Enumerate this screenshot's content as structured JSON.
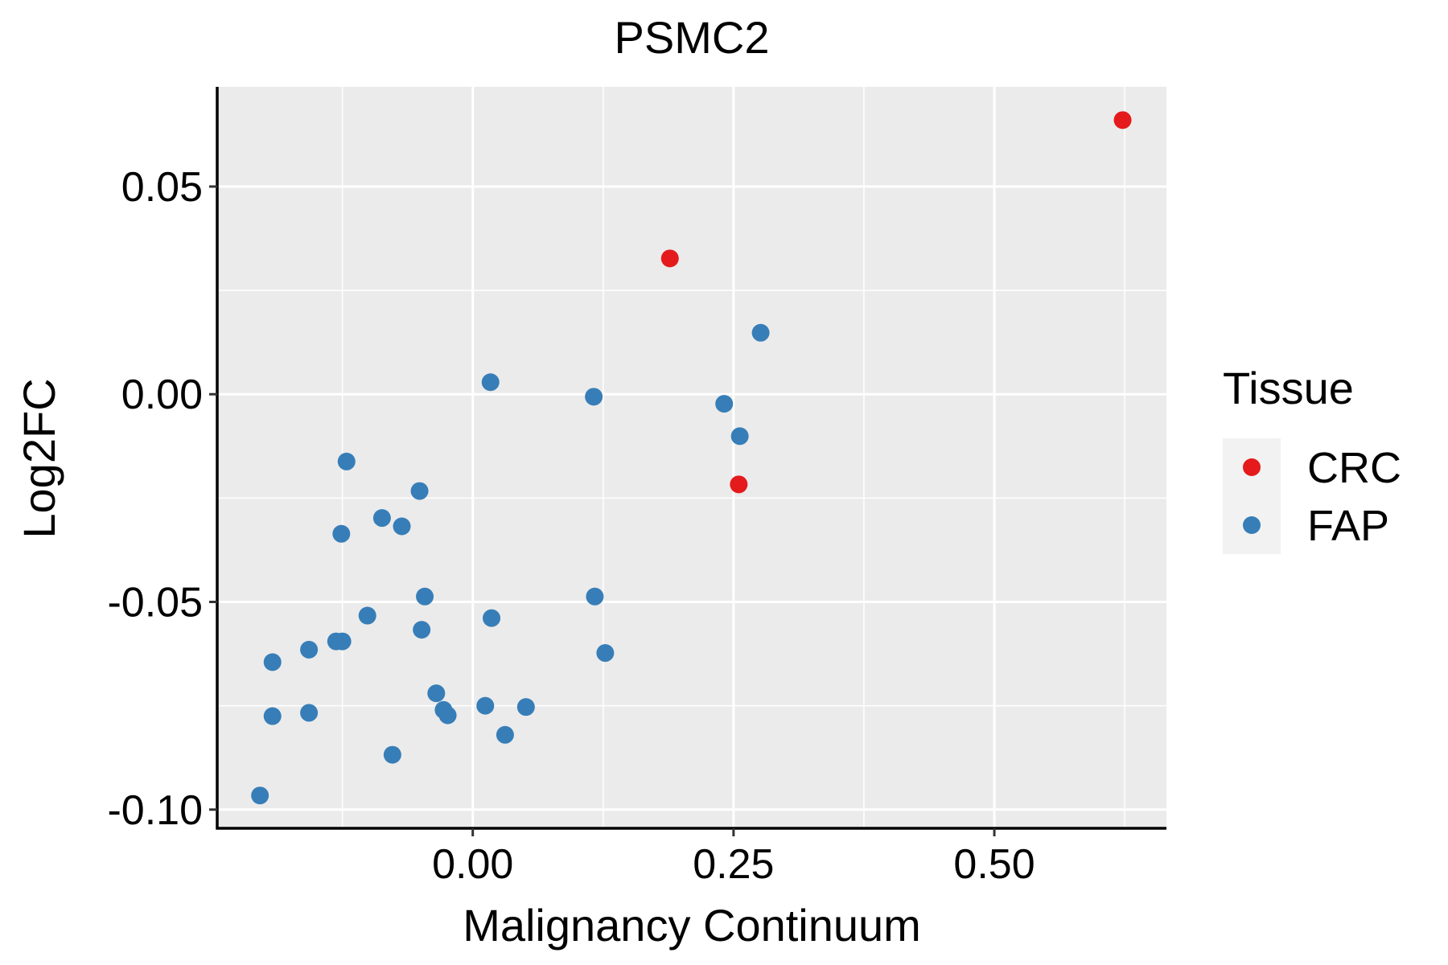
{
  "chart_data": {
    "type": "scatter",
    "title": "PSMC2",
    "xlabel": "Malignancy Continuum",
    "ylabel": "Log2FC",
    "xlim": [
      -0.245,
      0.665
    ],
    "ylim": [
      -0.1045,
      0.074
    ],
    "x_ticks": [
      0.0,
      0.25,
      0.5
    ],
    "x_tick_labels": [
      "0.00",
      "0.25",
      "0.50"
    ],
    "y_ticks": [
      -0.1,
      -0.05,
      0.0,
      0.05
    ],
    "y_tick_labels": [
      "-0.10",
      "-0.05",
      "0.00",
      "0.05"
    ],
    "grid": true,
    "legend": {
      "title": "Tissue",
      "position": "right",
      "entries": [
        {
          "label": "CRC",
          "color": "#e41a1c"
        },
        {
          "label": "FAP",
          "color": "#377eb8"
        }
      ]
    },
    "series": [
      {
        "name": "CRC",
        "color": "#e41a1c",
        "points": [
          {
            "x": 0.623,
            "y": 0.066
          },
          {
            "x": 0.189,
            "y": 0.0327
          },
          {
            "x": 0.255,
            "y": -0.0217
          }
        ]
      },
      {
        "name": "FAP",
        "color": "#377eb8",
        "points": [
          {
            "x": 0.276,
            "y": 0.0148
          },
          {
            "x": 0.017,
            "y": 0.0029
          },
          {
            "x": 0.116,
            "y": -0.0006
          },
          {
            "x": 0.241,
            "y": -0.0023
          },
          {
            "x": 0.256,
            "y": -0.0101
          },
          {
            "x": -0.121,
            "y": -0.0162
          },
          {
            "x": -0.051,
            "y": -0.0233
          },
          {
            "x": -0.087,
            "y": -0.0298
          },
          {
            "x": -0.068,
            "y": -0.0318
          },
          {
            "x": -0.126,
            "y": -0.0336
          },
          {
            "x": -0.046,
            "y": -0.0487
          },
          {
            "x": 0.117,
            "y": -0.0487
          },
          {
            "x": 0.018,
            "y": -0.0539
          },
          {
            "x": -0.101,
            "y": -0.0533
          },
          {
            "x": -0.049,
            "y": -0.0567
          },
          {
            "x": -0.131,
            "y": -0.0595
          },
          {
            "x": -0.125,
            "y": -0.0595
          },
          {
            "x": -0.157,
            "y": -0.0615
          },
          {
            "x": -0.192,
            "y": -0.0645
          },
          {
            "x": 0.127,
            "y": -0.0623
          },
          {
            "x": -0.035,
            "y": -0.072
          },
          {
            "x": -0.028,
            "y": -0.076
          },
          {
            "x": -0.024,
            "y": -0.0773
          },
          {
            "x": 0.012,
            "y": -0.075
          },
          {
            "x": 0.051,
            "y": -0.0753
          },
          {
            "x": -0.192,
            "y": -0.0775
          },
          {
            "x": -0.157,
            "y": -0.0767
          },
          {
            "x": -0.077,
            "y": -0.0868
          },
          {
            "x": 0.031,
            "y": -0.082
          },
          {
            "x": -0.204,
            "y": -0.0966
          }
        ]
      }
    ]
  }
}
